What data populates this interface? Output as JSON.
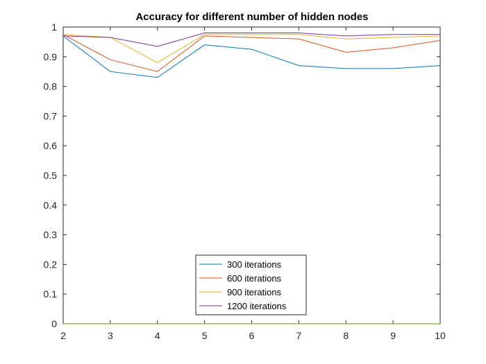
{
  "chart_data": {
    "type": "line",
    "title": "Accuracy for different number of hidden nodes",
    "xlabel": "",
    "ylabel": "",
    "xlim": [
      2,
      10
    ],
    "ylim": [
      0,
      1
    ],
    "x": [
      2,
      3,
      4,
      5,
      6,
      7,
      8,
      9,
      10
    ],
    "xticks": [
      "2",
      "3",
      "4",
      "5",
      "6",
      "7",
      "8",
      "9",
      "10"
    ],
    "yticks": [
      "0",
      "0.1",
      "0.2",
      "0.3",
      "0.4",
      "0.5",
      "0.6",
      "0.7",
      "0.8",
      "0.9",
      "1"
    ],
    "grid": false,
    "legend_position": "bottom-center",
    "series": [
      {
        "name": "300 iterations",
        "color": "#0072BD",
        "values": [
          0.97,
          0.85,
          0.83,
          0.94,
          0.925,
          0.87,
          0.86,
          0.86,
          0.87
        ]
      },
      {
        "name": "600 iterations",
        "color": "#D95319",
        "values": [
          0.975,
          0.89,
          0.85,
          0.97,
          0.965,
          0.96,
          0.915,
          0.93,
          0.955
        ]
      },
      {
        "name": "900 iterations",
        "color": "#EDB120",
        "values": [
          0.975,
          0.965,
          0.88,
          0.975,
          0.975,
          0.975,
          0.96,
          0.965,
          0.97
        ]
      },
      {
        "name": "1200 iterations",
        "color": "#7E2F8E",
        "values": [
          0.97,
          0.965,
          0.935,
          0.98,
          0.98,
          0.98,
          0.97,
          0.975,
          0.975
        ]
      }
    ],
    "baseline": {
      "color": "#77AC30",
      "value": 0
    }
  }
}
